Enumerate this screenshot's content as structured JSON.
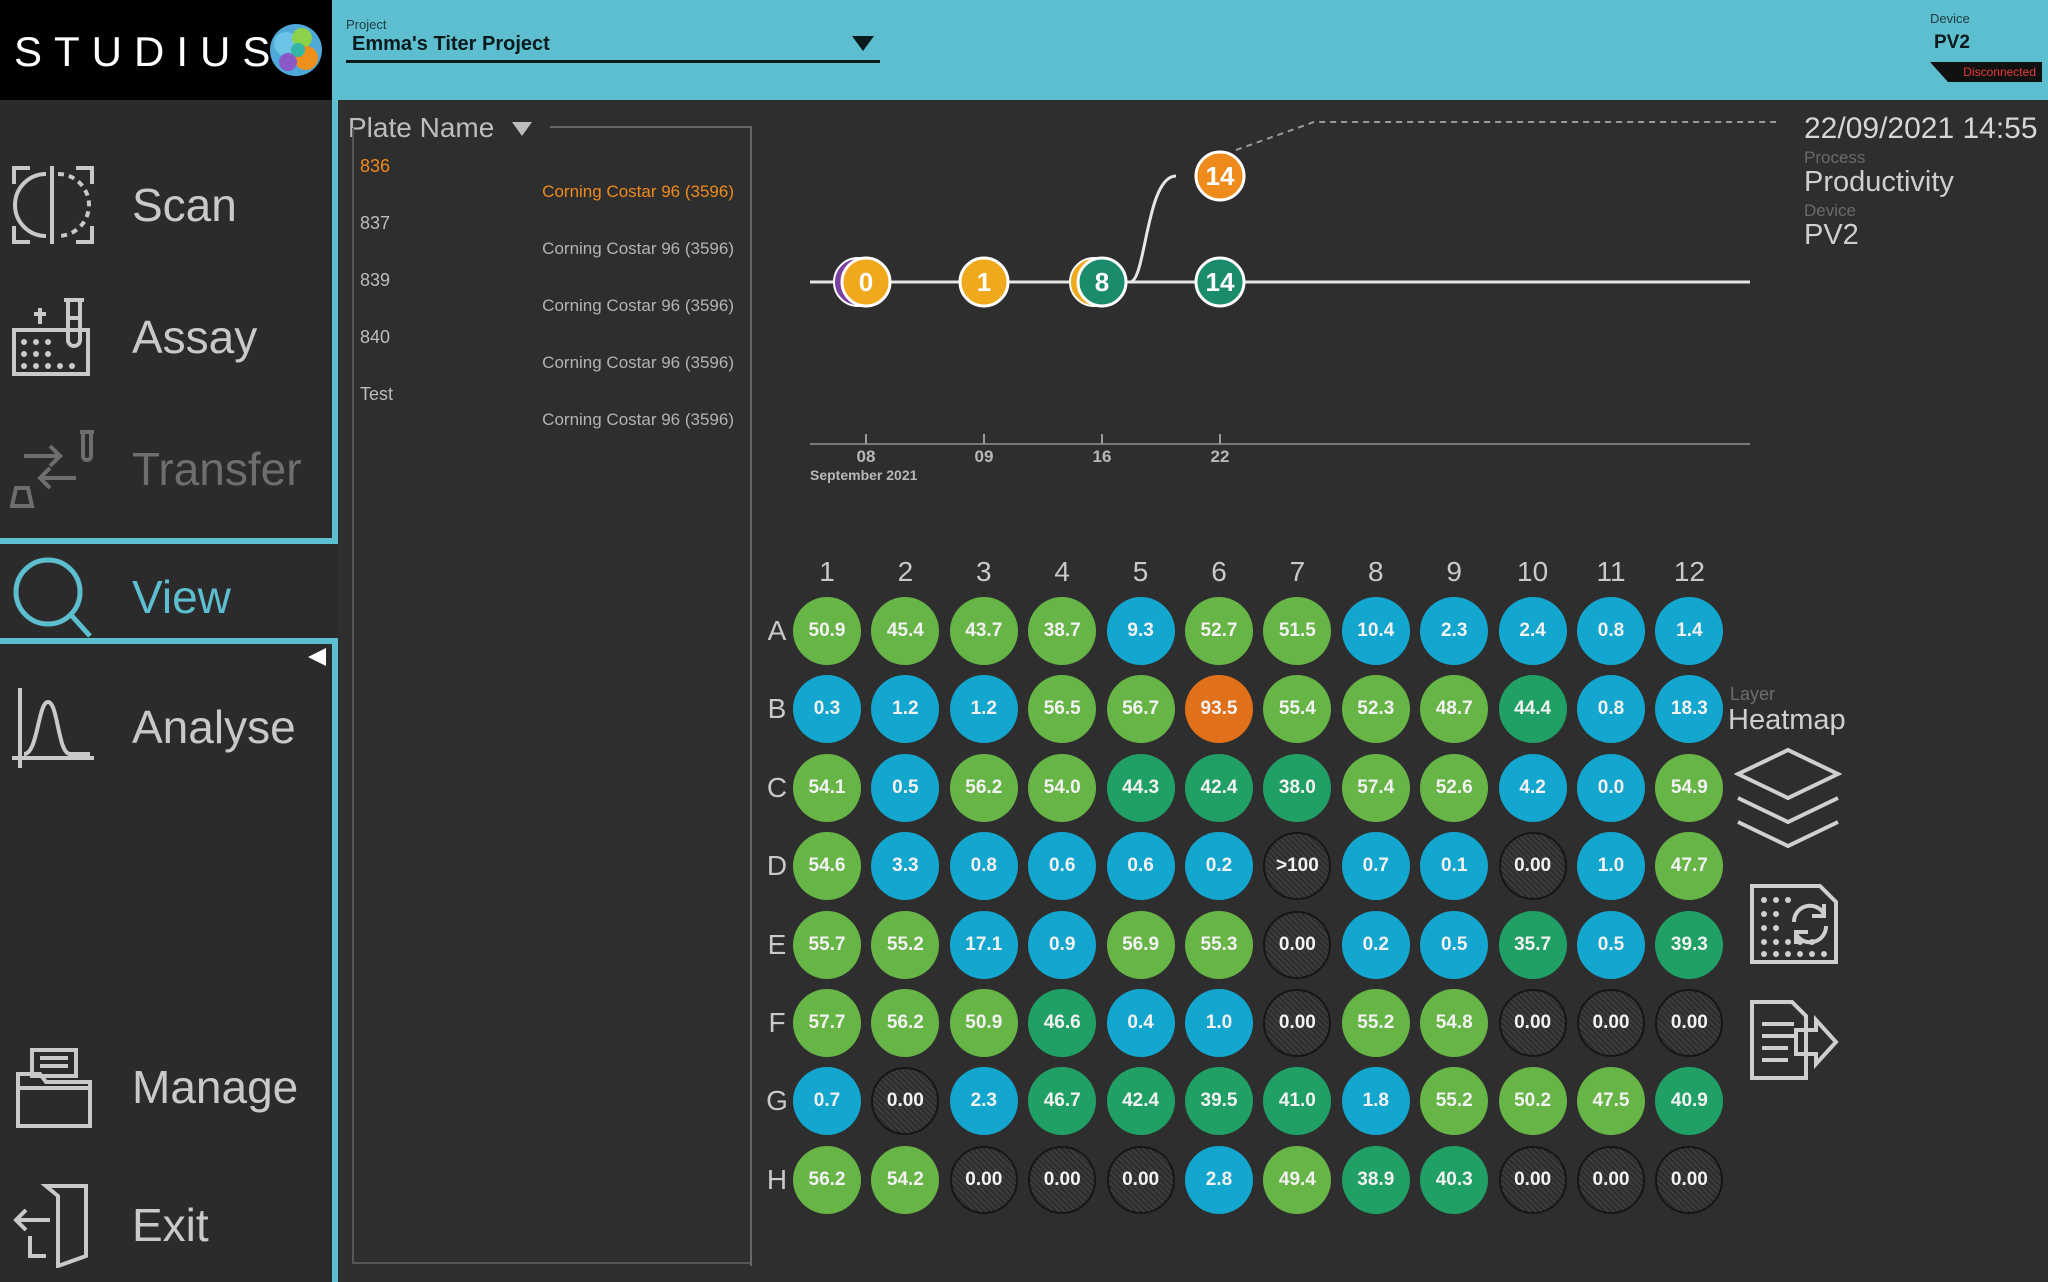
{
  "app": {
    "logo_text": "STUDIUS"
  },
  "header": {
    "project_label": "Project",
    "project_value": "Emma's Titer Project",
    "device_label": "Device",
    "device_value": "PV2",
    "device_status": "Disconnected"
  },
  "sidebar": {
    "items": [
      {
        "label": "Scan",
        "icon": "scan-icon"
      },
      {
        "label": "Assay",
        "icon": "assay-icon"
      },
      {
        "label": "Transfer",
        "icon": "transfer-icon",
        "disabled": true
      },
      {
        "label": "View",
        "icon": "view-icon",
        "active": true
      },
      {
        "label": "Analyse",
        "icon": "analyse-icon"
      },
      {
        "label": "Manage",
        "icon": "manage-icon"
      },
      {
        "label": "Exit",
        "icon": "exit-icon"
      }
    ]
  },
  "plates": {
    "header": "Plate Name",
    "rows": [
      {
        "name": "836",
        "type": "Corning Costar 96 (3596)",
        "selected": true
      },
      {
        "name": "837",
        "type": "Corning Costar 96 (3596)"
      },
      {
        "name": "839",
        "type": "Corning Costar 96 (3596)"
      },
      {
        "name": "840",
        "type": "Corning Costar 96 (3596)"
      },
      {
        "name": "Test",
        "type": "Corning Costar 96 (3596)"
      }
    ]
  },
  "meta": {
    "date": "22/09/2021 14:55",
    "process_label": "Process",
    "process_value": "Productivity",
    "device_label": "Device",
    "device_value": "PV2"
  },
  "timeline": {
    "ticks": [
      "08",
      "09",
      "16",
      "22"
    ],
    "month_label": "September 2021",
    "markers": [
      {
        "tick": "08",
        "label": "0",
        "color": "#f0a81c",
        "shadow": "#7b3fa0",
        "lane": "main"
      },
      {
        "tick": "09",
        "label": "1",
        "color": "#f0a81c",
        "lane": "main"
      },
      {
        "tick": "16",
        "label": "8",
        "color": "#1a8c6c",
        "shadow": "#f0a81c",
        "lane": "main"
      },
      {
        "tick": "22",
        "label": "14",
        "color": "#1a8c6c",
        "lane": "main"
      },
      {
        "tick": "22",
        "label": "14",
        "color": "#ef8a1c",
        "lane": "upper"
      }
    ]
  },
  "plate_grid": {
    "columns": [
      "1",
      "2",
      "3",
      "4",
      "5",
      "6",
      "7",
      "8",
      "9",
      "10",
      "11",
      "12"
    ],
    "rows": [
      "A",
      "B",
      "C",
      "D",
      "E",
      "F",
      "G",
      "H"
    ],
    "wells": [
      [
        [
          "50.9",
          "g"
        ],
        [
          "45.4",
          "g"
        ],
        [
          "43.7",
          "g"
        ],
        [
          "38.7",
          "g"
        ],
        [
          "9.3",
          "b"
        ],
        [
          "52.7",
          "g"
        ],
        [
          "51.5",
          "g"
        ],
        [
          "10.4",
          "b"
        ],
        [
          "2.3",
          "b"
        ],
        [
          "2.4",
          "b"
        ],
        [
          "0.8",
          "b"
        ],
        [
          "1.4",
          "b"
        ]
      ],
      [
        [
          "0.3",
          "b"
        ],
        [
          "1.2",
          "b"
        ],
        [
          "1.2",
          "b"
        ],
        [
          "56.5",
          "g"
        ],
        [
          "56.7",
          "g"
        ],
        [
          "93.5",
          "o"
        ],
        [
          "55.4",
          "g"
        ],
        [
          "52.3",
          "g"
        ],
        [
          "48.7",
          "g"
        ],
        [
          "44.4",
          "e"
        ],
        [
          "0.8",
          "b"
        ],
        [
          "18.3",
          "b"
        ]
      ],
      [
        [
          "54.1",
          "g"
        ],
        [
          "0.5",
          "b"
        ],
        [
          "56.2",
          "g"
        ],
        [
          "54.0",
          "g"
        ],
        [
          "44.3",
          "e"
        ],
        [
          "42.4",
          "e"
        ],
        [
          "38.0",
          "e"
        ],
        [
          "57.4",
          "g"
        ],
        [
          "52.6",
          "g"
        ],
        [
          "4.2",
          "b"
        ],
        [
          "0.0",
          "b"
        ],
        [
          "54.9",
          "g"
        ]
      ],
      [
        [
          "54.6",
          "g"
        ],
        [
          "3.3",
          "b"
        ],
        [
          "0.8",
          "b"
        ],
        [
          "0.6",
          "b"
        ],
        [
          "0.6",
          "b"
        ],
        [
          "0.2",
          "b"
        ],
        [
          ">100",
          "d"
        ],
        [
          "0.7",
          "b"
        ],
        [
          "0.1",
          "b"
        ],
        [
          "0.00",
          "d"
        ],
        [
          "1.0",
          "b"
        ],
        [
          "47.7",
          "g"
        ]
      ],
      [
        [
          "55.7",
          "g"
        ],
        [
          "55.2",
          "g"
        ],
        [
          "17.1",
          "b"
        ],
        [
          "0.9",
          "b"
        ],
        [
          "56.9",
          "g"
        ],
        [
          "55.3",
          "g"
        ],
        [
          "0.00",
          "d"
        ],
        [
          "0.2",
          "b"
        ],
        [
          "0.5",
          "b"
        ],
        [
          "35.7",
          "e"
        ],
        [
          "0.5",
          "b"
        ],
        [
          "39.3",
          "e"
        ]
      ],
      [
        [
          "57.7",
          "g"
        ],
        [
          "56.2",
          "g"
        ],
        [
          "50.9",
          "g"
        ],
        [
          "46.6",
          "e"
        ],
        [
          "0.4",
          "b"
        ],
        [
          "1.0",
          "b"
        ],
        [
          "0.00",
          "d"
        ],
        [
          "55.2",
          "g"
        ],
        [
          "54.8",
          "g"
        ],
        [
          "0.00",
          "d"
        ],
        [
          "0.00",
          "d"
        ],
        [
          "0.00",
          "d"
        ]
      ],
      [
        [
          "0.7",
          "b"
        ],
        [
          "0.00",
          "d"
        ],
        [
          "2.3",
          "b"
        ],
        [
          "46.7",
          "e"
        ],
        [
          "42.4",
          "e"
        ],
        [
          "39.5",
          "e"
        ],
        [
          "41.0",
          "e"
        ],
        [
          "1.8",
          "b"
        ],
        [
          "55.2",
          "g"
        ],
        [
          "50.2",
          "g"
        ],
        [
          "47.5",
          "g"
        ],
        [
          "40.9",
          "e"
        ]
      ],
      [
        [
          "56.2",
          "g"
        ],
        [
          "54.2",
          "g"
        ],
        [
          "0.00",
          "d"
        ],
        [
          "0.00",
          "d"
        ],
        [
          "0.00",
          "d"
        ],
        [
          "2.8",
          "b"
        ],
        [
          "49.4",
          "g"
        ],
        [
          "38.9",
          "e"
        ],
        [
          "40.3",
          "e"
        ],
        [
          "0.00",
          "d"
        ],
        [
          "0.00",
          "d"
        ],
        [
          "0.00",
          "d"
        ]
      ]
    ]
  },
  "layer": {
    "label": "Layer",
    "value": "Heatmap"
  }
}
